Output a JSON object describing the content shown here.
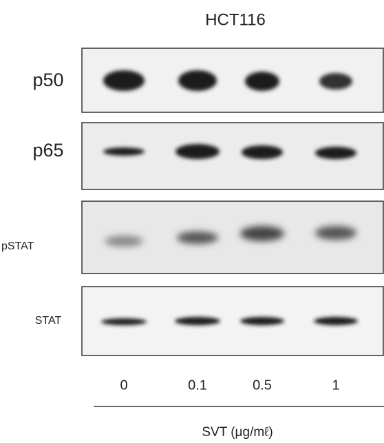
{
  "title": "HCT116",
  "rows": [
    {
      "label": "p50"
    },
    {
      "label": "p65"
    },
    {
      "label": "pSTAT"
    },
    {
      "label": "STAT"
    }
  ],
  "lanes": [
    "0",
    "0.1",
    "0.5",
    "1"
  ],
  "axis_label": "SVT (μg/mℓ)"
}
